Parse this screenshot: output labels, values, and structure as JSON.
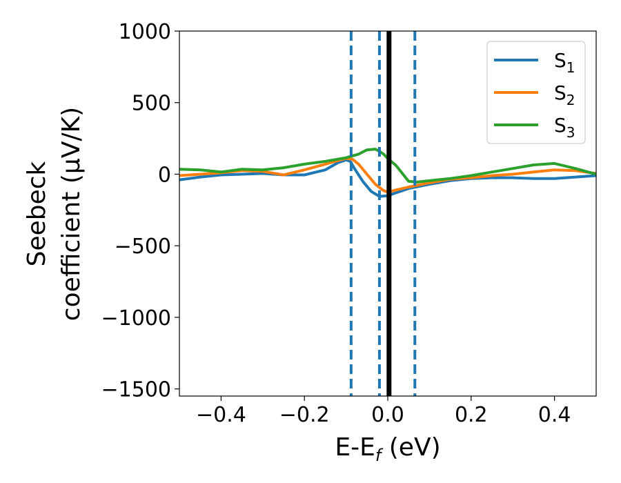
{
  "chart_data": {
    "type": "line",
    "xlabel_main": "E-E",
    "xlabel_sub": "f",
    "xlabel_tail": " (eV)",
    "ylabel_line1": "Seebeck",
    "ylabel_line2": "coefficient  (μV/K)",
    "xlim": [
      -0.5,
      0.5
    ],
    "ylim": [
      -1550,
      1000
    ],
    "xticks": [
      -0.4,
      -0.2,
      0.0,
      0.2,
      0.4
    ],
    "xtick_labels": [
      "−0.4",
      "−0.2",
      "0.0",
      "0.2",
      "0.4"
    ],
    "yticks": [
      1000,
      500,
      0,
      -500,
      -1000,
      -1500
    ],
    "ytick_labels": [
      "1000",
      "500",
      "0",
      "−500",
      "−1000",
      "−1500"
    ],
    "grid": false,
    "legend_position": "top-right",
    "series": [
      {
        "name": "S",
        "subscript": "1",
        "color": "#1f77b4",
        "x": [
          -0.5,
          -0.45,
          -0.4,
          -0.35,
          -0.3,
          -0.25,
          -0.2,
          -0.15,
          -0.12,
          -0.1,
          -0.09,
          -0.08,
          -0.06,
          -0.04,
          -0.02,
          0.0,
          0.02,
          0.05,
          0.1,
          0.15,
          0.2,
          0.25,
          0.3,
          0.35,
          0.4,
          0.45,
          0.5
        ],
        "y": [
          -40,
          -20,
          -5,
          0,
          5,
          -5,
          -5,
          30,
          80,
          100,
          90,
          40,
          -50,
          -120,
          -155,
          -150,
          -130,
          -100,
          -70,
          -45,
          -30,
          -25,
          -25,
          -30,
          -30,
          -20,
          -10
        ]
      },
      {
        "name": "S",
        "subscript": "2",
        "color": "#ff7f0e",
        "x": [
          -0.5,
          -0.45,
          -0.4,
          -0.35,
          -0.3,
          -0.25,
          -0.2,
          -0.15,
          -0.12,
          -0.1,
          -0.085,
          -0.07,
          -0.05,
          -0.03,
          -0.01,
          0.0,
          0.02,
          0.05,
          0.1,
          0.15,
          0.2,
          0.25,
          0.3,
          0.35,
          0.4,
          0.45,
          0.5
        ],
        "y": [
          -10,
          0,
          10,
          25,
          20,
          -5,
          30,
          70,
          95,
          110,
          105,
          70,
          0,
          -70,
          -115,
          -125,
          -110,
          -90,
          -60,
          -35,
          -25,
          -10,
          0,
          15,
          30,
          25,
          5
        ]
      },
      {
        "name": "S",
        "subscript": "3",
        "color": "#2ca02c",
        "x": [
          -0.5,
          -0.45,
          -0.4,
          -0.35,
          -0.3,
          -0.25,
          -0.2,
          -0.15,
          -0.1,
          -0.07,
          -0.05,
          -0.03,
          -0.02,
          -0.01,
          0.0,
          0.02,
          0.05,
          0.07,
          0.1,
          0.15,
          0.2,
          0.25,
          0.3,
          0.35,
          0.4,
          0.45,
          0.5
        ],
        "y": [
          35,
          30,
          15,
          35,
          30,
          45,
          70,
          90,
          115,
          140,
          170,
          175,
          160,
          140,
          110,
          60,
          -50,
          -55,
          -45,
          -30,
          -10,
          15,
          40,
          65,
          75,
          40,
          0
        ]
      }
    ],
    "vertical_lines": [
      {
        "x": -0.088,
        "style": "dashed",
        "color": "#1f77b4"
      },
      {
        "x": -0.02,
        "style": "dashed",
        "color": "#1f77b4"
      },
      {
        "x": 0.003,
        "style": "solid",
        "color": "#000000"
      },
      {
        "x": 0.065,
        "style": "dashed",
        "color": "#1f77b4"
      }
    ]
  }
}
